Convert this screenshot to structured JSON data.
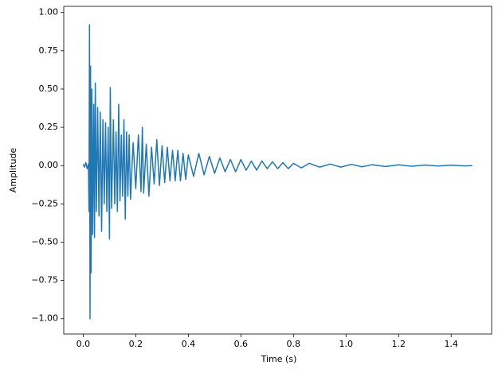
{
  "chart_data": {
    "type": "line",
    "x_label": "Time (s)",
    "y_label": "Amplitude",
    "color": "#1f77b4",
    "x": [
      0.0,
      0.005,
      0.01,
      0.015,
      0.02,
      0.022,
      0.024,
      0.026,
      0.028,
      0.03,
      0.033,
      0.036,
      0.04,
      0.043,
      0.046,
      0.05,
      0.055,
      0.06,
      0.065,
      0.07,
      0.075,
      0.08,
      0.085,
      0.09,
      0.095,
      0.1,
      0.103,
      0.108,
      0.115,
      0.12,
      0.125,
      0.13,
      0.135,
      0.14,
      0.145,
      0.15,
      0.155,
      0.16,
      0.165,
      0.17,
      0.175,
      0.18,
      0.19,
      0.2,
      0.21,
      0.22,
      0.225,
      0.23,
      0.24,
      0.25,
      0.26,
      0.27,
      0.28,
      0.29,
      0.3,
      0.31,
      0.32,
      0.33,
      0.34,
      0.35,
      0.36,
      0.37,
      0.38,
      0.39,
      0.4,
      0.42,
      0.44,
      0.46,
      0.48,
      0.5,
      0.52,
      0.54,
      0.56,
      0.58,
      0.6,
      0.62,
      0.64,
      0.66,
      0.68,
      0.7,
      0.72,
      0.74,
      0.76,
      0.78,
      0.8,
      0.83,
      0.86,
      0.9,
      0.94,
      0.98,
      1.02,
      1.06,
      1.1,
      1.15,
      1.2,
      1.25,
      1.3,
      1.35,
      1.4,
      1.45,
      1.48
    ],
    "values": [
      0.01,
      -0.01,
      0.02,
      -0.02,
      0.01,
      -0.3,
      0.92,
      -1.0,
      0.65,
      -0.7,
      0.5,
      -0.45,
      0.4,
      -0.47,
      0.54,
      -0.3,
      0.38,
      -0.33,
      0.35,
      -0.43,
      0.3,
      -0.25,
      0.28,
      -0.3,
      0.25,
      -0.48,
      0.51,
      -0.28,
      0.3,
      -0.25,
      0.22,
      -0.3,
      0.4,
      -0.23,
      0.2,
      -0.2,
      0.3,
      -0.35,
      0.22,
      -0.2,
      0.2,
      -0.22,
      0.15,
      -0.15,
      0.2,
      -0.17,
      0.25,
      -0.18,
      0.14,
      -0.2,
      0.12,
      -0.12,
      0.17,
      -0.13,
      0.13,
      -0.11,
      0.12,
      -0.1,
      0.1,
      -0.1,
      0.1,
      -0.1,
      0.08,
      -0.09,
      0.07,
      -0.07,
      0.08,
      -0.06,
      0.06,
      -0.05,
      0.05,
      -0.04,
      0.04,
      -0.04,
      0.04,
      -0.03,
      0.03,
      -0.03,
      0.03,
      -0.02,
      0.025,
      -0.02,
      0.02,
      -0.02,
      0.015,
      -0.015,
      0.015,
      -0.01,
      0.01,
      -0.01,
      0.008,
      -0.008,
      0.006,
      -0.006,
      0.005,
      -0.004,
      0.004,
      -0.003,
      0.003,
      -0.002,
      0.0
    ],
    "xlim": [
      -0.074,
      1.554
    ],
    "ylim": [
      -1.1,
      1.04
    ],
    "xticks": [
      {
        "value": 0,
        "label": "0.0"
      },
      0.2,
      0.4,
      0.6,
      0.8,
      {
        "value": 1,
        "label": "1.0"
      },
      1.2,
      1.4
    ],
    "yticks": [
      {
        "value": -1,
        "label": "−1.00"
      },
      {
        "value": -0.75,
        "label": "−0.75"
      },
      {
        "value": -0.5,
        "label": "−0.50"
      },
      {
        "value": -0.25,
        "label": "−0.25"
      },
      {
        "value": 0,
        "label": "0.00"
      },
      0.25,
      {
        "value": 0.5,
        "label": "0.50"
      },
      0.75,
      {
        "value": 1,
        "label": "1.00"
      }
    ]
  }
}
